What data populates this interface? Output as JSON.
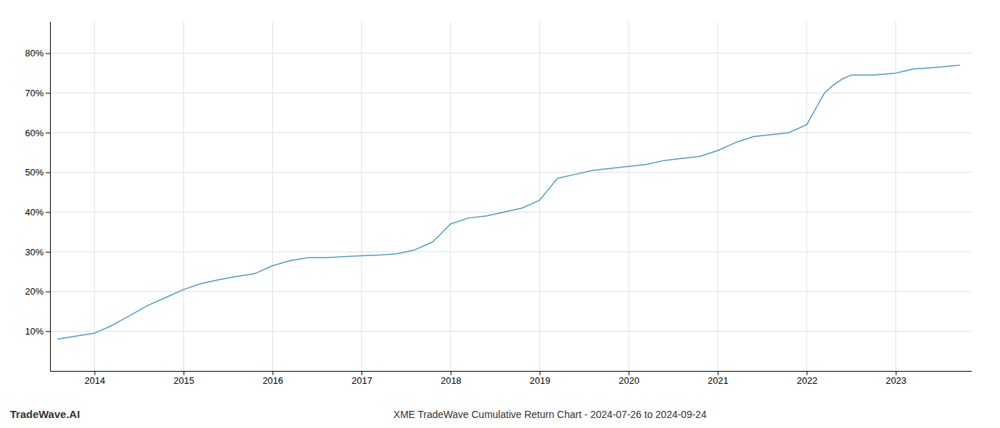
{
  "chart_data": {
    "type": "line",
    "title": "XME TradeWave Cumulative Return Chart - 2024-07-26 to 2024-09-24",
    "annotations": [
      "TradeWave.AI"
    ],
    "color": "#4a9cc7",
    "x": [
      2013.58,
      2014.0,
      2014.2,
      2014.4,
      2014.6,
      2014.8,
      2015.0,
      2015.2,
      2015.4,
      2015.6,
      2015.8,
      2016.0,
      2016.2,
      2016.4,
      2016.6,
      2016.8,
      2017.0,
      2017.2,
      2017.4,
      2017.6,
      2017.8,
      2018.0,
      2018.2,
      2018.4,
      2018.6,
      2018.8,
      2019.0,
      2019.2,
      2019.4,
      2019.6,
      2019.8,
      2020.0,
      2020.2,
      2020.4,
      2020.6,
      2020.8,
      2021.0,
      2021.2,
      2021.4,
      2021.6,
      2021.8,
      2022.0,
      2022.1,
      2022.2,
      2022.3,
      2022.4,
      2022.5,
      2022.6,
      2022.7,
      2022.75,
      2023.0,
      2023.2,
      2023.5,
      2023.72
    ],
    "values": [
      8.0,
      9.5,
      11.5,
      14.0,
      16.5,
      18.5,
      20.5,
      22.0,
      23.0,
      23.8,
      24.5,
      26.5,
      27.8,
      28.5,
      28.5,
      28.8,
      29.0,
      29.2,
      29.5,
      30.5,
      32.5,
      37.0,
      38.5,
      39.0,
      40.0,
      41.0,
      43.0,
      48.5,
      49.5,
      50.5,
      51.0,
      51.5,
      52.0,
      53.0,
      53.5,
      54.0,
      55.5,
      57.5,
      59.0,
      59.5,
      60.0,
      62.0,
      66.0,
      70.0,
      72.0,
      73.5,
      74.5,
      74.5,
      74.5,
      74.5,
      75.0,
      76.0,
      76.5,
      77.0
    ],
    "xlim": [
      2013.5,
      2023.85
    ],
    "ylim": [
      0,
      88
    ],
    "xticks": [
      2014,
      2015,
      2016,
      2017,
      2018,
      2019,
      2020,
      2021,
      2022,
      2023
    ],
    "yticks": [
      {
        "value": 10,
        "label": "10%"
      },
      {
        "value": 20,
        "label": "20%"
      },
      {
        "value": 30,
        "label": "30%"
      },
      {
        "value": 40,
        "label": "40%"
      },
      {
        "value": 50,
        "label": "50%"
      },
      {
        "value": 60,
        "label": "60%"
      },
      {
        "value": 70,
        "label": "70%"
      },
      {
        "value": 80,
        "label": "80%"
      }
    ],
    "grid": true
  }
}
